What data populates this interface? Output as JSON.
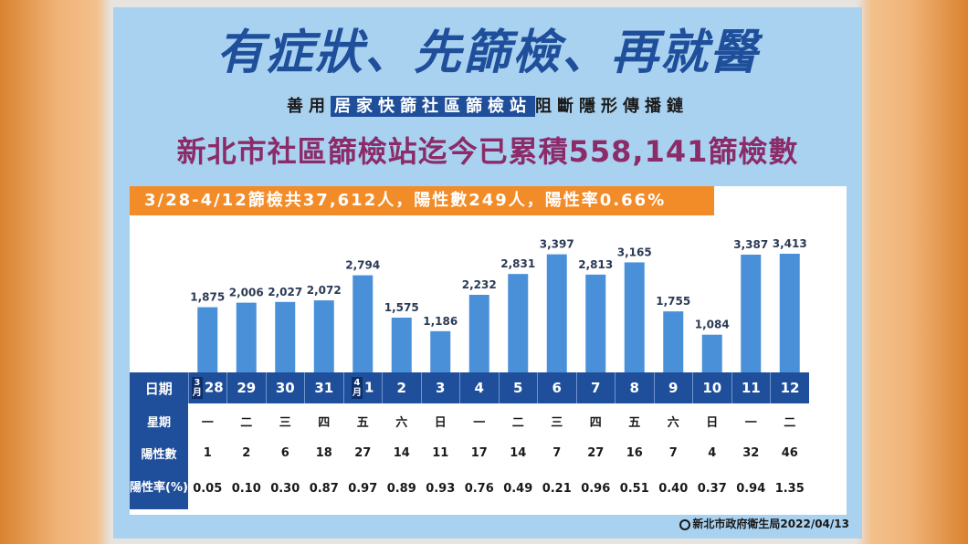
{
  "poster": {
    "title": "有症狀、先篩檢、再就醫",
    "sub_prefix": "善用",
    "sub_highlight": "居家快篩社區篩檢站",
    "sub_suffix": "阻斷隱形傳播鏈",
    "headline": "新北市社區篩檢站迄今已累積558,141篩檢數",
    "banner": "3/28-4/12篩檢共37,612人，陽性數249人，陽性率0.66%",
    "footer": "新北市政府衛生局2022/04/13"
  },
  "table": {
    "date_label": "日期",
    "weekday_label": "星期",
    "positive_label": "陽性數",
    "rate_label": "陽性率(%)",
    "month_march": "3月",
    "month_april": "4月",
    "weekdays": [
      "一",
      "二",
      "三",
      "四",
      "五",
      "六",
      "日",
      "一",
      "二",
      "三",
      "四",
      "五",
      "六",
      "日",
      "一",
      "二"
    ],
    "positives": [
      "1",
      "2",
      "6",
      "18",
      "27",
      "14",
      "11",
      "17",
      "14",
      "7",
      "27",
      "16",
      "7",
      "4",
      "32",
      "46"
    ],
    "rates": [
      "0.05",
      "0.10",
      "0.30",
      "0.87",
      "0.97",
      "0.89",
      "0.93",
      "0.76",
      "0.49",
      "0.21",
      "0.96",
      "0.51",
      "0.40",
      "0.37",
      "0.94",
      "1.35"
    ]
  },
  "chart_data": {
    "type": "bar",
    "categories": [
      "28",
      "29",
      "30",
      "31",
      "1",
      "2",
      "3",
      "4",
      "5",
      "6",
      "7",
      "8",
      "9",
      "10",
      "11",
      "12"
    ],
    "values": [
      1875,
      2006,
      2027,
      2072,
      2794,
      1575,
      1186,
      2232,
      2831,
      3397,
      2813,
      3165,
      1755,
      1084,
      3387,
      3413
    ],
    "value_labels": [
      "1,875",
      "2,006",
      "2,027",
      "2,072",
      "2,794",
      "1,575",
      "1,186",
      "2,232",
      "2,831",
      "3,397",
      "2,813",
      "3,165",
      "1,755",
      "1,084",
      "3,387",
      "3,413"
    ],
    "title": "",
    "xlabel": "日期",
    "ylabel": "",
    "ylim": [
      0,
      3500
    ],
    "grid": false,
    "bar_color": "#4a90d9"
  }
}
